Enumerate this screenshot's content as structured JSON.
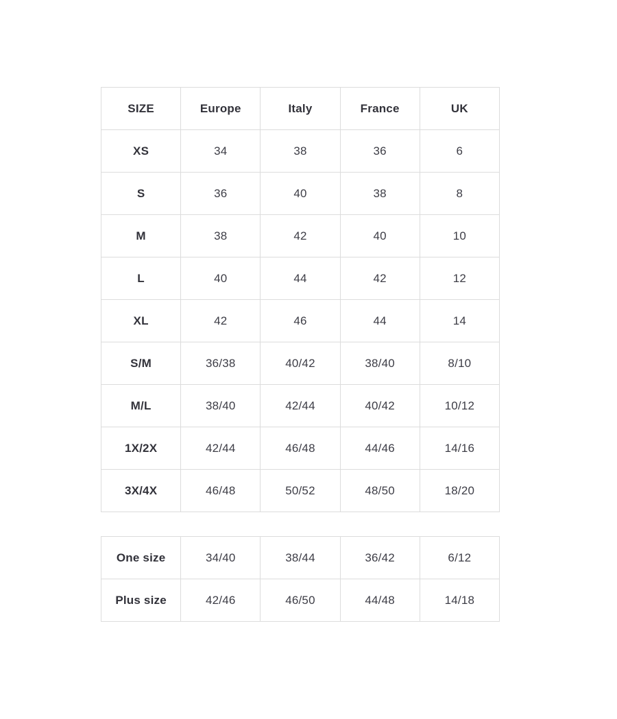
{
  "colors": {
    "background": "#ffffff",
    "border": "#dcdcdc",
    "label_text": "#32323a",
    "value_text": "#3d3d46"
  },
  "chart_data": [
    {
      "type": "table",
      "columns": [
        "SIZE",
        "Europe",
        "Italy",
        "France",
        "UK"
      ],
      "rows": [
        [
          "XS",
          "34",
          "38",
          "36",
          "6"
        ],
        [
          "S",
          "36",
          "40",
          "38",
          "8"
        ],
        [
          "M",
          "38",
          "42",
          "40",
          "10"
        ],
        [
          "L",
          "40",
          "44",
          "42",
          "12"
        ],
        [
          "XL",
          "42",
          "46",
          "44",
          "14"
        ],
        [
          "S/M",
          "36/38",
          "40/42",
          "38/40",
          "8/10"
        ],
        [
          "M/L",
          "38/40",
          "42/44",
          "40/42",
          "10/12"
        ],
        [
          "1X/2X",
          "42/44",
          "46/48",
          "44/46",
          "14/16"
        ],
        [
          "3X/4X",
          "46/48",
          "50/52",
          "48/50",
          "18/20"
        ]
      ],
      "layout": {
        "grid": true,
        "header_row": true,
        "bold_first_column": true
      }
    },
    {
      "type": "table",
      "columns": [],
      "rows": [
        [
          "One size",
          "34/40",
          "38/44",
          "36/42",
          "6/12"
        ],
        [
          "Plus size",
          "42/46",
          "46/50",
          "44/48",
          "14/18"
        ]
      ],
      "layout": {
        "grid": true,
        "header_row": false,
        "bold_first_column": true
      }
    }
  ]
}
